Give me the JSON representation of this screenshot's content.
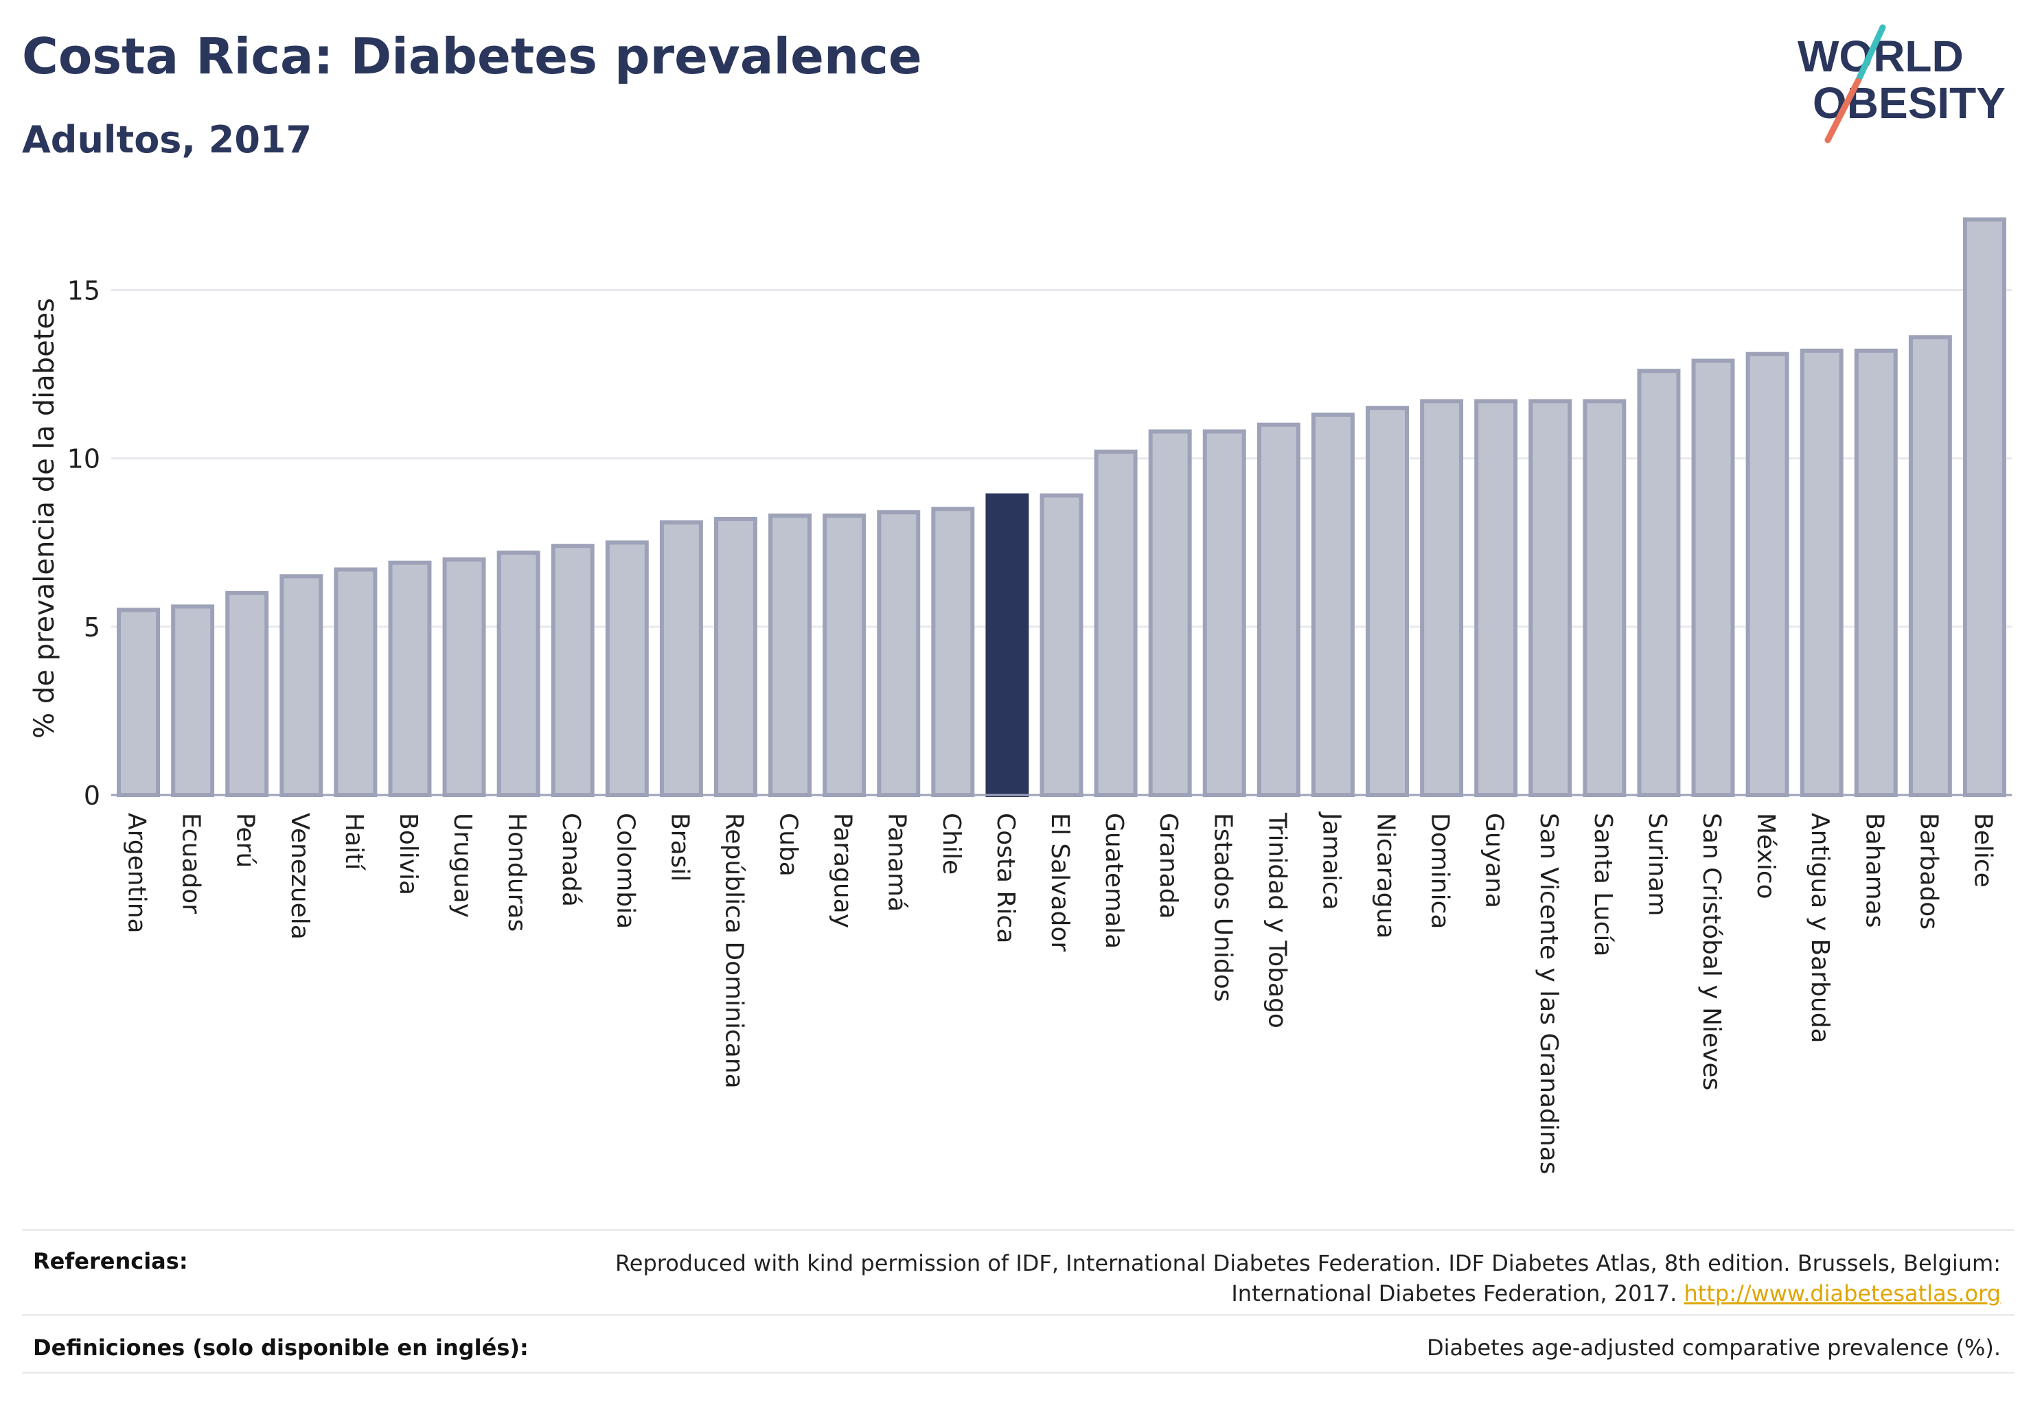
{
  "header": {
    "title": "Costa Rica: Diabetes prevalence",
    "subtitle": "Adultos, 2017"
  },
  "logo": {
    "line1": "WORLD",
    "line2": "OBESITY",
    "accent_teal": "#3dbfbf",
    "accent_coral": "#e8735a"
  },
  "chart_data": {
    "type": "bar",
    "title": "Costa Rica: Diabetes prevalence",
    "subtitle": "Adultos, 2017",
    "xlabel": "",
    "ylabel": "% de prevalencia de la diabetes",
    "ylim": [
      0,
      17.5
    ],
    "yticks": [
      0,
      5,
      10,
      15
    ],
    "grid": true,
    "highlight": "Costa Rica",
    "colors": {
      "bar": "#bfc2cf",
      "bar_edge": "#9da2b8",
      "highlight": "#2b365c"
    },
    "categories": [
      "Argentina",
      "Ecuador",
      "Perú",
      "Venezuela",
      "Haití",
      "Bolivia",
      "Uruguay",
      "Honduras",
      "Canadá",
      "Colombia",
      "Brasil",
      "República Dominicana",
      "Cuba",
      "Paraguay",
      "Panamá",
      "Chile",
      "Costa Rica",
      "El Salvador",
      "Guatemala",
      "Granada",
      "Estados Unidos",
      "Trinidad y Tobago",
      "Jamaica",
      "Nicaragua",
      "Dominica",
      "Guyana",
      "San Vicente y las Granadinas",
      "Santa Lucía",
      "Surinam",
      "San Cristóbal y Nieves",
      "México",
      "Antigua y Barbuda",
      "Bahamas",
      "Barbados",
      "Belice"
    ],
    "values": [
      5.5,
      5.6,
      6.0,
      6.5,
      6.7,
      6.9,
      7.0,
      7.2,
      7.4,
      7.5,
      8.1,
      8.2,
      8.3,
      8.3,
      8.4,
      8.5,
      8.9,
      8.9,
      10.2,
      10.8,
      10.8,
      11.0,
      11.3,
      11.5,
      11.7,
      11.7,
      11.7,
      11.7,
      12.6,
      12.9,
      13.1,
      13.2,
      13.2,
      13.6,
      17.1
    ]
  },
  "footer": {
    "references_label": "Referencias:",
    "references_text": "Reproduced with kind permission of IDF, International Diabetes Federation. IDF Diabetes Atlas, 8th edition. Brussels, Belgium: International Diabetes Federation, 2017.",
    "references_link": "http://www.diabetesatlas.org",
    "definitions_label": "Definiciones (solo disponible en inglés):",
    "definitions_text": "Diabetes age-adjusted comparative prevalence (%)."
  }
}
